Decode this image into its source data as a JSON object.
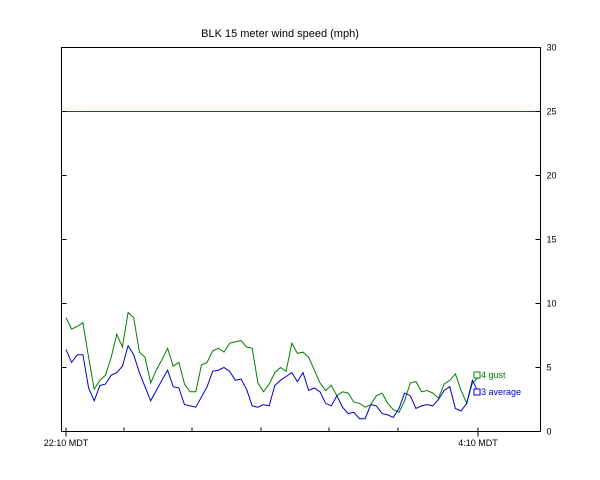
{
  "chart_data": {
    "type": "line",
    "title": "BLK 15 meter wind speed (mph)",
    "xlabel": "",
    "ylabel": "",
    "ylim": [
      0,
      30
    ],
    "y_axis_side": "right",
    "y_ticks": [
      0,
      5,
      10,
      15,
      20,
      25,
      30
    ],
    "x_ticks": [
      "22:10 MDT",
      "4:10 MDT"
    ],
    "grid": false,
    "legend_placement": "inline at line ends",
    "threshold": {
      "value": 25,
      "color": "#cc0000"
    },
    "series": [
      {
        "name": "4 gust",
        "color": "#008000",
        "values": [
          8.9,
          8.0,
          8.2,
          8.5,
          5.8,
          3.3,
          4.0,
          4.4,
          5.8,
          7.6,
          6.6,
          9.3,
          8.9,
          6.2,
          5.8,
          3.8,
          4.8,
          5.6,
          6.5,
          5.1,
          5.4,
          3.7,
          3.1,
          3.1,
          5.2,
          5.4,
          6.3,
          6.5,
          6.2,
          6.9,
          7.0,
          7.1,
          6.6,
          6.5,
          3.8,
          3.1,
          3.7,
          4.6,
          5.0,
          4.7,
          6.9,
          6.1,
          6.2,
          5.8,
          4.8,
          3.8,
          3.2,
          3.6,
          2.8,
          3.1,
          3.0,
          2.3,
          2.2,
          1.9,
          2.1,
          2.8,
          3.0,
          2.2,
          1.7,
          1.5,
          2.4,
          3.8,
          3.9,
          3.1,
          3.2,
          3.0,
          2.6,
          3.7,
          4.0,
          4.5,
          3.2,
          2.2,
          3.8,
          4.2
        ]
      },
      {
        "name": "3 average",
        "color": "#0000cc",
        "values": [
          6.4,
          5.4,
          6.0,
          6.0,
          3.4,
          2.4,
          3.6,
          3.7,
          4.4,
          4.6,
          5.1,
          6.7,
          6.0,
          4.6,
          3.5,
          2.4,
          3.2,
          4.0,
          4.8,
          3.5,
          3.4,
          2.1,
          2.0,
          1.9,
          2.7,
          3.5,
          4.7,
          4.8,
          5.0,
          4.7,
          4.0,
          4.1,
          3.3,
          2.0,
          1.9,
          2.1,
          2.0,
          3.6,
          4.0,
          4.3,
          4.6,
          3.9,
          4.6,
          3.2,
          3.4,
          3.1,
          2.2,
          2.0,
          2.8,
          1.9,
          1.4,
          1.5,
          1.0,
          1.0,
          2.1,
          2.0,
          1.4,
          1.3,
          1.1,
          1.8,
          3.0,
          2.8,
          1.8,
          2.0,
          2.1,
          2.0,
          2.5,
          3.2,
          3.5,
          1.8,
          1.6,
          2.2,
          4.0,
          3.1
        ]
      }
    ]
  }
}
